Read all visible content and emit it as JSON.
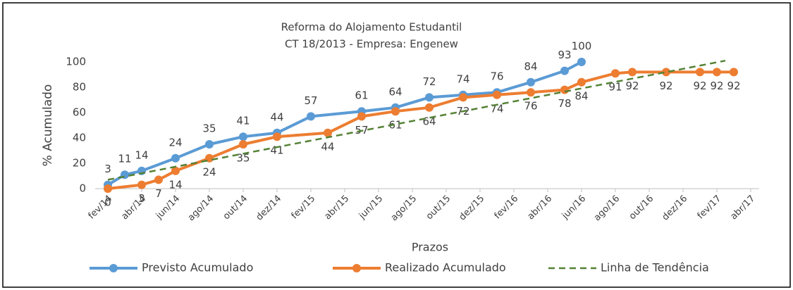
{
  "chart_data": {
    "type": "line",
    "title": "Reforma do Alojamento Estudantil",
    "subtitle": "CT 18/2013 - Empresa: Engenew",
    "x_label": "Prazos",
    "y_label": "% Acumulado",
    "ylim": [
      0,
      100
    ],
    "yticks": [
      0,
      20,
      40,
      60,
      80,
      100
    ],
    "xlim": [
      -0.75,
      38.5
    ],
    "xticks": [
      {
        "value": 0,
        "label": "fev/14"
      },
      {
        "value": 2,
        "label": "abr/14"
      },
      {
        "value": 4,
        "label": "jun/14"
      },
      {
        "value": 6,
        "label": "ago/14"
      },
      {
        "value": 8,
        "label": "out/14"
      },
      {
        "value": 10,
        "label": "dez/14"
      },
      {
        "value": 12,
        "label": "fev/15"
      },
      {
        "value": 14,
        "label": "abr/15"
      },
      {
        "value": 16,
        "label": "jun/15"
      },
      {
        "value": 18,
        "label": "ago/15"
      },
      {
        "value": 20,
        "label": "out/15"
      },
      {
        "value": 22,
        "label": "dez/15"
      },
      {
        "value": 24,
        "label": "fev/16"
      },
      {
        "value": 26,
        "label": "abr/16"
      },
      {
        "value": 28,
        "label": "jun/16"
      },
      {
        "value": 30,
        "label": "ago/16"
      },
      {
        "value": 32,
        "label": "out/16"
      },
      {
        "value": 34,
        "label": "dez/16"
      },
      {
        "value": 36,
        "label": "fev/17"
      },
      {
        "value": 38,
        "label": "abr/17"
      }
    ],
    "legend": "bottom",
    "series": [
      {
        "name": "Previsto Acumulado",
        "color": "#5b9bd5",
        "marker": true,
        "labels": "above",
        "x": [
          0,
          1,
          2,
          4,
          6,
          8,
          10,
          12,
          15,
          17,
          19,
          21,
          23,
          25,
          27,
          28
        ],
        "values": [
          3,
          11,
          14,
          24,
          35,
          41,
          44,
          57,
          61,
          64,
          72,
          74,
          76,
          84,
          93,
          100
        ]
      },
      {
        "name": "Realizado Acumulado",
        "color": "#ed7d31",
        "marker": true,
        "labels": "below",
        "x": [
          0,
          2,
          3,
          4,
          6,
          8,
          10,
          13,
          15,
          17,
          19,
          21,
          23,
          25,
          27,
          28,
          30,
          31,
          33,
          35,
          36,
          37
        ],
        "values": [
          0,
          3,
          7,
          14,
          24,
          35,
          41,
          44,
          57,
          61,
          64,
          72,
          74,
          76,
          78,
          84,
          91,
          92,
          92,
          92,
          92,
          92
        ]
      },
      {
        "name": "Linha de Tendência",
        "color": "#548235",
        "dashed": true,
        "x": [
          0,
          36.5
        ],
        "values": [
          7,
          101
        ]
      }
    ]
  }
}
